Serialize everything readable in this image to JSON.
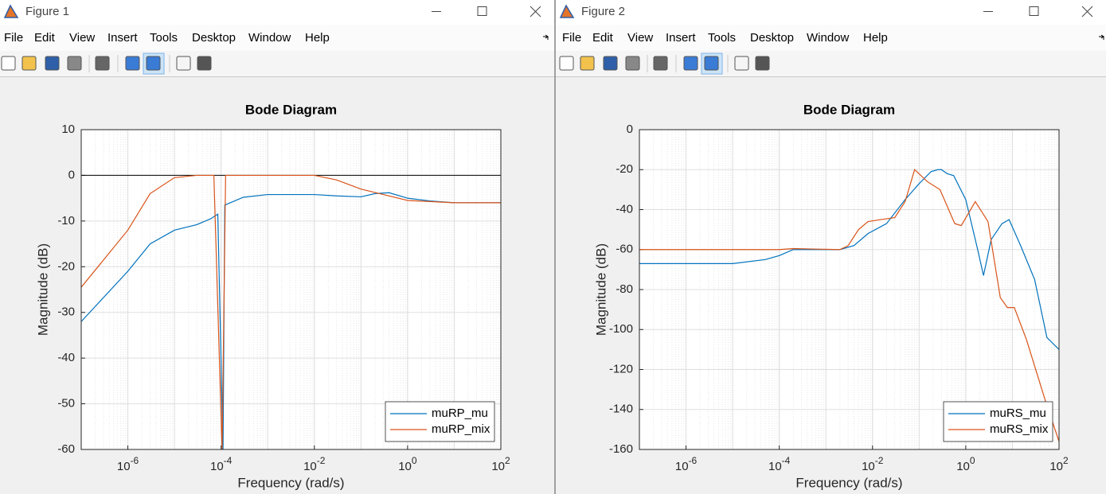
{
  "windows": [
    {
      "title": "Figure 1",
      "menu": [
        "File",
        "Edit",
        "View",
        "Insert",
        "Tools",
        "Desktop",
        "Window",
        "Help"
      ]
    },
    {
      "title": "Figure 2",
      "menu": [
        "File",
        "Edit",
        "View",
        "Insert",
        "Tools",
        "Desktop",
        "Window",
        "Help"
      ]
    }
  ],
  "chart_data": [
    {
      "type": "line",
      "title": "Bode Diagram",
      "xlabel": "Frequency  (rad/s)",
      "ylabel": "Magnitude (dB)",
      "xscale": "log",
      "xlim": [
        1e-07,
        100
      ],
      "xticks": [
        {
          "value": 1e-06,
          "label": "10^-6"
        },
        {
          "value": 0.0001,
          "label": "10^-4"
        },
        {
          "value": 0.01,
          "label": "10^-2"
        },
        {
          "value": 1,
          "label": "10^0"
        },
        {
          "value": 100,
          "label": "10^2"
        }
      ],
      "ylim": [
        -60,
        10
      ],
      "yticks": [
        -60,
        -50,
        -40,
        -30,
        -20,
        -10,
        0,
        10
      ],
      "grid": true,
      "legend": "lower right",
      "series": [
        {
          "name": "muRP_mu",
          "color": "#0072bd",
          "x": [
            1e-07,
            1e-06,
            3e-06,
            1e-05,
            3e-05,
            6e-05,
            8.5e-05,
            0.00011,
            0.00012,
            0.0003,
            0.001,
            0.01,
            0.03,
            0.1,
            0.2,
            0.4,
            1,
            3,
            10,
            100
          ],
          "values": [
            -32,
            -21,
            -15,
            -12,
            -10.8,
            -9.5,
            -8.5,
            -60,
            -6.5,
            -4.8,
            -4.2,
            -4.2,
            -4.5,
            -4.7,
            -4.0,
            -3.8,
            -5,
            -5.6,
            -6,
            -6
          ]
        },
        {
          "name": "muRP_mix",
          "color": "#d95319",
          "x": [
            1e-07,
            1e-06,
            3e-06,
            1e-05,
            3e-05,
            7e-05,
            0.000105,
            0.000125,
            0.01,
            0.03,
            0.1,
            1,
            10,
            100
          ],
          "values": [
            -24.5,
            -12,
            -4,
            -0.5,
            0,
            0,
            -60,
            0,
            0,
            -1,
            -3,
            -5.5,
            -6,
            -6
          ]
        }
      ]
    },
    {
      "type": "line",
      "title": "Bode Diagram",
      "xlabel": "Frequency  (rad/s)",
      "ylabel": "Magnitude (dB)",
      "xscale": "log",
      "xlim": [
        1e-07,
        100
      ],
      "xticks": [
        {
          "value": 1e-06,
          "label": "10^-6"
        },
        {
          "value": 0.0001,
          "label": "10^-4"
        },
        {
          "value": 0.01,
          "label": "10^-2"
        },
        {
          "value": 1,
          "label": "10^0"
        },
        {
          "value": 100,
          "label": "10^2"
        }
      ],
      "ylim": [
        -160,
        0
      ],
      "yticks": [
        -160,
        -140,
        -120,
        -100,
        -80,
        -60,
        -40,
        -20,
        0
      ],
      "grid": true,
      "legend": "lower right",
      "series": [
        {
          "name": "muRS_mu",
          "color": "#0072bd",
          "x": [
            1e-07,
            1e-05,
            5e-05,
            0.0001,
            0.0002,
            0.002,
            0.004,
            0.008,
            0.02,
            0.05,
            0.1,
            0.18,
            0.25,
            0.3,
            0.4,
            0.55,
            1,
            1.8,
            2.4,
            3.5,
            6,
            8.5,
            15,
            30,
            55,
            100
          ],
          "values": [
            -67,
            -67,
            -65,
            -63,
            -60,
            -60,
            -58,
            -52,
            -47,
            -35,
            -27,
            -21,
            -20,
            -20,
            -22,
            -23,
            -35,
            -60,
            -73,
            -55,
            -47,
            -45,
            -58,
            -75,
            -104,
            -110
          ]
        },
        {
          "name": "muRS_mix",
          "color": "#d95319",
          "x": [
            1e-07,
            0.0001,
            0.0002,
            0.002,
            0.003,
            0.005,
            0.008,
            0.015,
            0.03,
            0.05,
            0.08,
            0.15,
            0.28,
            0.58,
            0.8,
            1.6,
            3,
            5.5,
            7.8,
            11,
            20,
            50,
            100
          ],
          "values": [
            -60,
            -60,
            -59.5,
            -60,
            -58,
            -50,
            -46,
            -45,
            -44,
            -36,
            -20,
            -26,
            -30,
            -47,
            -48,
            -36,
            -46,
            -84,
            -89,
            -89,
            -105,
            -135,
            -156
          ]
        }
      ]
    }
  ]
}
